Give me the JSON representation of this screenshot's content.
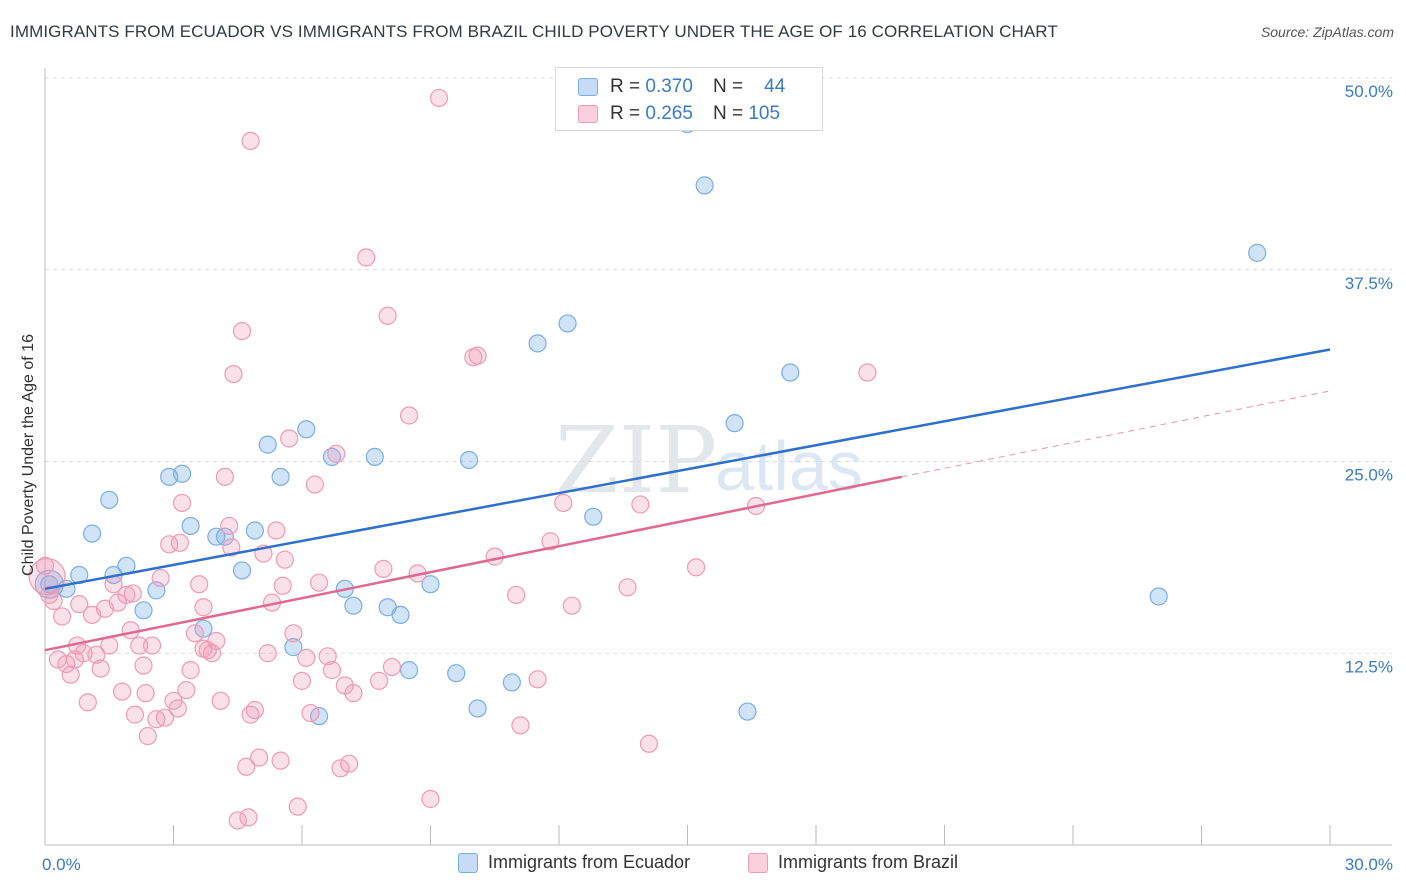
{
  "title": "IMMIGRANTS FROM ECUADOR VS IMMIGRANTS FROM BRAZIL CHILD POVERTY UNDER THE AGE OF 16 CORRELATION CHART",
  "source": "Source: ZipAtlas.com",
  "watermark": {
    "zip": "ZIP",
    "atlas": "atlas"
  },
  "legend": {
    "r_label": "R =",
    "n_label": "N =",
    "rows": [
      {
        "r": "0.370",
        "n": "44",
        "color": "#7aaee8"
      },
      {
        "r": "0.265",
        "n": "105",
        "color": "#f09ab5"
      }
    ]
  },
  "colors": {
    "ecuador": "#7aaee8",
    "brazil": "#f09ab5",
    "ecuador_line": "#2f6fcf",
    "brazil_line": "#e2688f",
    "tick_text": "#3a7bc8"
  },
  "chart_data": {
    "type": "scatter",
    "title": "IMMIGRANTS FROM ECUADOR VS IMMIGRANTS FROM BRAZIL CHILD POVERTY UNDER THE AGE OF 16 CORRELATION CHART",
    "xlabel": "",
    "ylabel": "Child Poverty Under the Age of 16",
    "xlim": [
      0,
      30
    ],
    "ylim": [
      0,
      50
    ],
    "x_tick_labels": [
      "0.0%",
      "30.0%"
    ],
    "y_tick_labels": [
      "12.5%",
      "25.0%",
      "37.5%",
      "50.0%"
    ],
    "y_ticks": [
      12.5,
      25,
      37.5,
      50
    ],
    "grid": "horizontal dashed",
    "legend_position": "top-center",
    "series": [
      {
        "name": "Immigrants from Ecuador",
        "color": "#7aaee8",
        "points": [
          [
            0.1,
            17.0
          ],
          [
            0.5,
            16.7
          ],
          [
            0.8,
            17.6
          ],
          [
            1.1,
            20.3
          ],
          [
            1.5,
            22.5
          ],
          [
            1.6,
            17.6
          ],
          [
            1.9,
            18.2
          ],
          [
            2.3,
            15.3
          ],
          [
            2.6,
            16.6
          ],
          [
            2.9,
            24.0
          ],
          [
            3.2,
            24.2
          ],
          [
            3.4,
            20.8
          ],
          [
            3.7,
            14.1
          ],
          [
            4.0,
            20.1
          ],
          [
            4.2,
            20.1
          ],
          [
            4.6,
            17.9
          ],
          [
            4.9,
            20.5
          ],
          [
            5.2,
            26.1
          ],
          [
            5.5,
            24.0
          ],
          [
            5.8,
            12.9
          ],
          [
            6.1,
            27.1
          ],
          [
            6.4,
            8.4
          ],
          [
            6.7,
            25.3
          ],
          [
            7.0,
            16.7
          ],
          [
            7.2,
            15.6
          ],
          [
            7.7,
            25.3
          ],
          [
            8.0,
            15.5
          ],
          [
            8.3,
            15.0
          ],
          [
            8.5,
            11.4
          ],
          [
            9.0,
            17.0
          ],
          [
            9.6,
            11.2
          ],
          [
            9.9,
            25.1
          ],
          [
            10.1,
            8.9
          ],
          [
            10.9,
            10.6
          ],
          [
            11.5,
            32.7
          ],
          [
            12.2,
            34.0
          ],
          [
            12.8,
            21.4
          ],
          [
            15.0,
            47.0
          ],
          [
            15.4,
            43.0
          ],
          [
            16.1,
            27.5
          ],
          [
            16.4,
            8.7
          ],
          [
            17.4,
            30.8
          ],
          [
            26.0,
            16.2
          ],
          [
            28.3,
            38.6
          ]
        ]
      },
      {
        "name": "Immigrants from Brazil",
        "color": "#f09ab5",
        "points": [
          [
            0.0,
            18.2
          ],
          [
            0.1,
            16.3
          ],
          [
            0.2,
            15.9
          ],
          [
            0.3,
            12.1
          ],
          [
            0.4,
            14.9
          ],
          [
            0.5,
            11.8
          ],
          [
            0.6,
            11.1
          ],
          [
            0.7,
            12.1
          ],
          [
            0.75,
            13.0
          ],
          [
            0.8,
            15.7
          ],
          [
            0.9,
            12.5
          ],
          [
            1.0,
            9.3
          ],
          [
            1.1,
            15.0
          ],
          [
            1.2,
            12.4
          ],
          [
            1.3,
            11.5
          ],
          [
            1.4,
            15.4
          ],
          [
            1.5,
            13.0
          ],
          [
            1.6,
            17.0
          ],
          [
            1.7,
            15.8
          ],
          [
            1.8,
            10.0
          ],
          [
            1.9,
            16.3
          ],
          [
            2.0,
            14.0
          ],
          [
            2.1,
            8.5
          ],
          [
            2.2,
            13.0
          ],
          [
            2.3,
            11.7
          ],
          [
            2.35,
            9.9
          ],
          [
            2.4,
            7.1
          ],
          [
            2.5,
            13.0
          ],
          [
            2.6,
            8.2
          ],
          [
            2.7,
            17.4
          ],
          [
            2.8,
            8.3
          ],
          [
            2.9,
            19.6
          ],
          [
            3.0,
            9.4
          ],
          [
            3.1,
            8.9
          ],
          [
            3.15,
            19.7
          ],
          [
            3.2,
            22.3
          ],
          [
            3.3,
            10.1
          ],
          [
            3.4,
            11.4
          ],
          [
            3.5,
            13.8
          ],
          [
            3.6,
            17.0
          ],
          [
            3.7,
            15.5
          ],
          [
            3.8,
            12.7
          ],
          [
            3.9,
            12.5
          ],
          [
            4.0,
            13.3
          ],
          [
            4.1,
            9.4
          ],
          [
            4.2,
            24.0
          ],
          [
            4.3,
            20.8
          ],
          [
            4.35,
            19.4
          ],
          [
            4.4,
            30.7
          ],
          [
            4.5,
            1.6
          ],
          [
            4.6,
            33.5
          ],
          [
            4.7,
            5.1
          ],
          [
            4.8,
            8.5
          ],
          [
            4.9,
            8.8
          ],
          [
            5.0,
            5.7
          ],
          [
            5.1,
            19.0
          ],
          [
            5.2,
            12.5
          ],
          [
            5.3,
            15.8
          ],
          [
            5.4,
            20.5
          ],
          [
            5.5,
            5.5
          ],
          [
            5.6,
            18.6
          ],
          [
            5.7,
            26.5
          ],
          [
            5.8,
            13.8
          ],
          [
            5.9,
            2.5
          ],
          [
            6.0,
            10.7
          ],
          [
            6.1,
            12.2
          ],
          [
            6.2,
            8.6
          ],
          [
            6.3,
            23.5
          ],
          [
            6.4,
            17.1
          ],
          [
            6.6,
            12.3
          ],
          [
            6.7,
            11.4
          ],
          [
            6.8,
            25.5
          ],
          [
            6.9,
            5.0
          ],
          [
            7.0,
            10.4
          ],
          [
            7.1,
            5.3
          ],
          [
            7.2,
            9.9
          ],
          [
            7.5,
            38.3
          ],
          [
            7.8,
            10.7
          ],
          [
            7.9,
            18.0
          ],
          [
            8.0,
            34.5
          ],
          [
            8.1,
            11.6
          ],
          [
            8.5,
            28.0
          ],
          [
            8.7,
            17.7
          ],
          [
            9.0,
            3.0
          ],
          [
            9.2,
            48.7
          ],
          [
            10.0,
            31.8
          ],
          [
            10.1,
            31.9
          ],
          [
            10.5,
            18.8
          ],
          [
            11.0,
            16.3
          ],
          [
            11.1,
            7.8
          ],
          [
            11.5,
            10.8
          ],
          [
            11.8,
            19.8
          ],
          [
            12.1,
            22.3
          ],
          [
            12.3,
            15.6
          ],
          [
            13.6,
            16.8
          ],
          [
            13.9,
            22.2
          ],
          [
            14.1,
            6.6
          ],
          [
            15.2,
            18.1
          ],
          [
            16.6,
            22.1
          ],
          [
            19.2,
            30.8
          ],
          [
            4.8,
            45.9
          ],
          [
            4.75,
            1.8
          ],
          [
            3.7,
            12.8
          ],
          [
            2.05,
            16.4
          ],
          [
            5.55,
            16.9
          ]
        ]
      }
    ],
    "trendlines": [
      {
        "series": "Immigrants from Ecuador",
        "x": [
          0,
          30
        ],
        "y": [
          16.7,
          32.3
        ],
        "style": "solid"
      },
      {
        "series": "Immigrants from Brazil",
        "x": [
          0,
          20
        ],
        "y": [
          12.7,
          24.0
        ],
        "style": "solid"
      },
      {
        "series": "Immigrants from Brazil",
        "x": [
          20,
          30
        ],
        "y": [
          24.0,
          29.6
        ],
        "style": "dashed"
      }
    ]
  },
  "bottom_legend": [
    {
      "label": "Immigrants from Ecuador",
      "color": "#7aaee8"
    },
    {
      "label": "Immigrants from Brazil",
      "color": "#f09ab5"
    }
  ]
}
